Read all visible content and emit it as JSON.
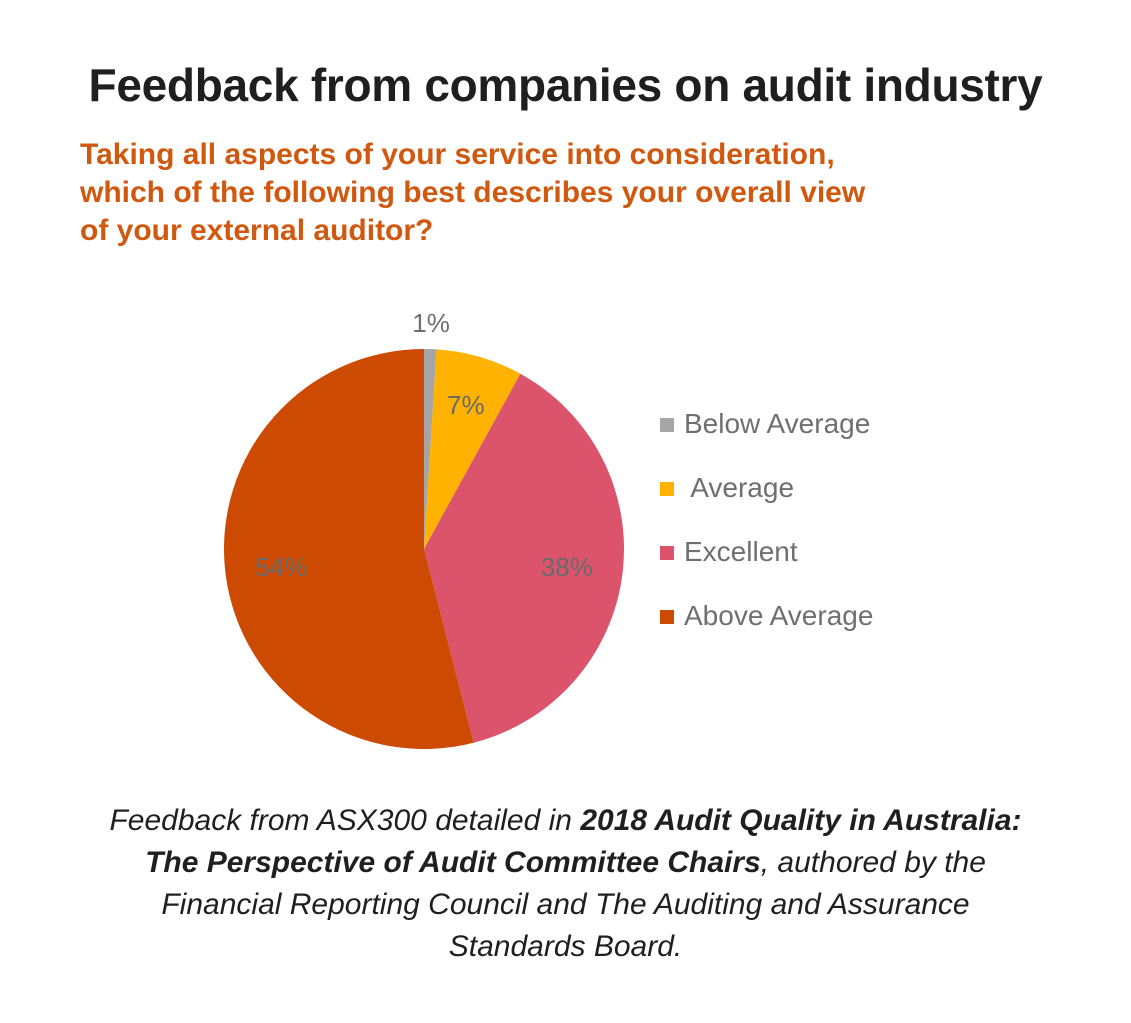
{
  "title": "Feedback from companies on audit industry",
  "subtitle_lines": [
    "Taking all aspects of your service into consideration,",
    "which of the following best describes your overall view",
    "of your external auditor?"
  ],
  "chart_data": {
    "type": "pie",
    "title": "Feedback from companies on audit industry",
    "start_angle_deg": 0,
    "direction": "clockwise",
    "slices": [
      {
        "label": "Below Average",
        "value": 1,
        "data_label": "1%",
        "color": "#a5a5a5"
      },
      {
        "label": "Average",
        "value": 7,
        "data_label": "7%",
        "color": "#ffb300"
      },
      {
        "label": "Excellent",
        "value": 38,
        "data_label": "38%",
        "color": "#dc546c"
      },
      {
        "label": "Above Average",
        "value": 54,
        "data_label": "54%",
        "color": "#cc4a01"
      }
    ],
    "legend_position": "right",
    "legend_order": [
      "Below Average",
      " Average",
      "Excellent",
      "Above Average"
    ]
  },
  "caption": {
    "line1_prefix": "Feedback from ASX300 detailed in ",
    "line1_bold": "2018 Audit Quality in Australia:",
    "line2_bold": "The Perspective of Audit Committee Chairs",
    "line2_suffix": ", authored by the",
    "line3": "Financial Reporting Council and The Auditing and Assurance",
    "line4": "Standards Board."
  }
}
